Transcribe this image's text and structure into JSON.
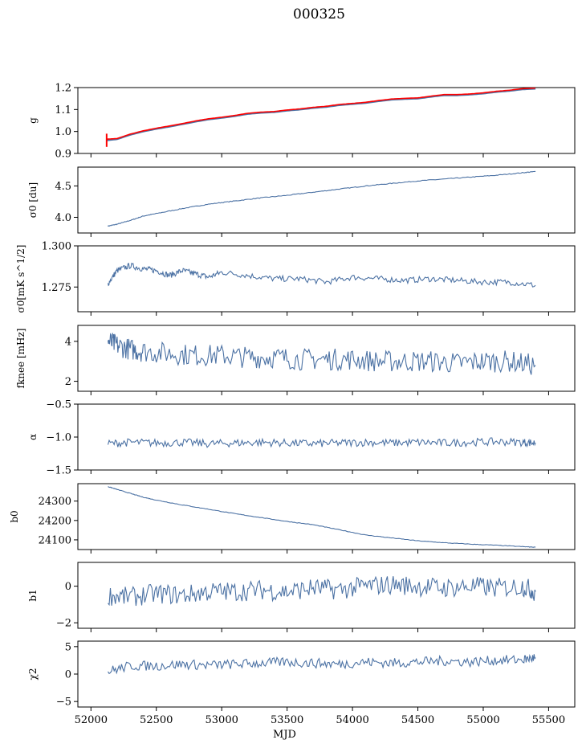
{
  "figure": {
    "title": "000325",
    "xlabel": "MJD"
  },
  "colors": {
    "series": "#4c72a4",
    "fit": "#ff0000",
    "axis": "#000000"
  },
  "chart_data": [
    {
      "type": "line",
      "ylabel": "g",
      "ylim": [
        0.9,
        1.2
      ],
      "yticks": [
        "0.9",
        "1.0",
        "1.1",
        "1.2"
      ],
      "x": [
        52120,
        52200,
        52300,
        52400,
        52500,
        52600,
        52700,
        52800,
        52900,
        53000,
        53100,
        53200,
        53300,
        53400,
        53500,
        53600,
        53700,
        53800,
        53900,
        54000,
        54100,
        54200,
        54300,
        54400,
        54500,
        54600,
        54700,
        54800,
        54900,
        55000,
        55100,
        55200,
        55300,
        55400
      ],
      "series": [
        {
          "values": [
            0.96,
            0.965,
            0.985,
            1.0,
            1.012,
            1.022,
            1.033,
            1.045,
            1.055,
            1.062,
            1.07,
            1.08,
            1.085,
            1.088,
            1.095,
            1.1,
            1.107,
            1.112,
            1.12,
            1.125,
            1.13,
            1.138,
            1.145,
            1.148,
            1.15,
            1.158,
            1.165,
            1.165,
            1.168,
            1.173,
            1.18,
            1.185,
            1.192,
            1.195
          ]
        },
        {
          "values": [
            0.965,
            0.968,
            0.988,
            1.003,
            1.015,
            1.025,
            1.036,
            1.048,
            1.058,
            1.065,
            1.073,
            1.083,
            1.088,
            1.091,
            1.098,
            1.103,
            1.11,
            1.115,
            1.123,
            1.128,
            1.133,
            1.141,
            1.148,
            1.151,
            1.153,
            1.161,
            1.168,
            1.168,
            1.171,
            1.176,
            1.183,
            1.188,
            1.195,
            1.198
          ]
        }
      ],
      "annotations": [
        "error bar at MJD 52120 from 0.93 to 0.99"
      ]
    },
    {
      "type": "line",
      "ylabel": "σ0 [du]",
      "ylim": [
        3.75,
        4.8
      ],
      "yticks": [
        "4.0",
        "4.5"
      ],
      "x": [
        52130,
        52200,
        52300,
        52400,
        52500,
        52700,
        52900,
        53100,
        53300,
        53500,
        53700,
        53900,
        54100,
        54300,
        54500,
        54700,
        54900,
        55100,
        55300,
        55400
      ],
      "series": [
        {
          "values": [
            3.86,
            3.89,
            3.95,
            4.02,
            4.06,
            4.14,
            4.21,
            4.26,
            4.31,
            4.35,
            4.4,
            4.45,
            4.5,
            4.54,
            4.58,
            4.61,
            4.64,
            4.67,
            4.71,
            4.73
          ]
        }
      ]
    },
    {
      "type": "line",
      "ylabel": "σ0[mK s^1/2]",
      "ylim": [
        1.26,
        1.3
      ],
      "yticks": [
        "1.275",
        "1.300"
      ],
      "x": [
        52130,
        52200,
        52300,
        52400,
        52500,
        52600,
        52700,
        52800,
        52900,
        53000,
        53200,
        53400,
        53600,
        53800,
        54000,
        54200,
        54400,
        54600,
        54800,
        55000,
        55200,
        55400
      ],
      "series": [
        {
          "values": [
            1.277,
            1.285,
            1.288,
            1.286,
            1.285,
            1.282,
            1.285,
            1.283,
            1.281,
            1.284,
            1.282,
            1.28,
            1.28,
            1.278,
            1.281,
            1.28,
            1.279,
            1.28,
            1.279,
            1.278,
            1.278,
            1.276
          ]
        }
      ]
    },
    {
      "type": "line",
      "ylabel": "fknee [mHz]",
      "ylim": [
        1.5,
        4.8
      ],
      "yticks": [
        "2",
        "4"
      ],
      "x": [
        52130,
        52200,
        52300,
        52400,
        52600,
        52800,
        53000,
        53200,
        53400,
        53600,
        53800,
        54000,
        54200,
        54400,
        54600,
        54800,
        55000,
        55200,
        55400
      ],
      "series": [
        {
          "values": [
            4.0,
            3.8,
            3.6,
            3.5,
            3.4,
            3.3,
            3.3,
            3.2,
            3.2,
            3.1,
            3.1,
            3.1,
            3.0,
            3.0,
            3.0,
            2.9,
            3.0,
            3.0,
            2.8
          ]
        }
      ]
    },
    {
      "type": "line",
      "ylabel": "α",
      "ylim": [
        -1.5,
        -0.5
      ],
      "yticks": [
        "−1.5",
        "−1.0",
        "−0.5"
      ],
      "x": [
        52130,
        52300,
        52500,
        52700,
        52900,
        53100,
        53300,
        53500,
        53700,
        53900,
        54100,
        54300,
        54500,
        54700,
        54900,
        55100,
        55300,
        55400
      ],
      "series": [
        {
          "values": [
            -1.1,
            -1.08,
            -1.09,
            -1.08,
            -1.1,
            -1.09,
            -1.08,
            -1.09,
            -1.1,
            -1.09,
            -1.08,
            -1.09,
            -1.08,
            -1.09,
            -1.08,
            -1.07,
            -1.08,
            -1.09
          ]
        }
      ]
    },
    {
      "type": "line",
      "ylabel": "b0",
      "ylim": [
        24050,
        24390
      ],
      "yticks": [
        "24100",
        "24200",
        "24300"
      ],
      "x": [
        52130,
        52200,
        52300,
        52400,
        52500,
        52700,
        52900,
        53100,
        53300,
        53500,
        53700,
        53900,
        54100,
        54300,
        54500,
        54700,
        54900,
        55100,
        55300,
        55400
      ],
      "series": [
        {
          "values": [
            24375,
            24360,
            24340,
            24320,
            24305,
            24280,
            24258,
            24235,
            24215,
            24195,
            24178,
            24152,
            24125,
            24110,
            24095,
            24085,
            24078,
            24072,
            24065,
            24062
          ]
        }
      ]
    },
    {
      "type": "line",
      "ylabel": "b1",
      "ylim": [
        -2.3,
        1.3
      ],
      "yticks": [
        "−2",
        "0"
      ],
      "x": [
        52130,
        52300,
        52500,
        52700,
        52900,
        53100,
        53300,
        53500,
        53700,
        53900,
        54100,
        54300,
        54500,
        54700,
        54900,
        55100,
        55300,
        55400
      ],
      "series": [
        {
          "values": [
            -0.5,
            -0.6,
            -0.4,
            -0.5,
            -0.3,
            -0.3,
            -0.2,
            -0.3,
            -0.1,
            -0.2,
            0.0,
            0.1,
            0.0,
            -0.1,
            0.0,
            -0.1,
            0.0,
            -0.3
          ]
        }
      ]
    },
    {
      "type": "line",
      "ylabel": "χ2",
      "ylim": [
        -6,
        6
      ],
      "yticks": [
        "−5",
        "0",
        "5"
      ],
      "xticks": [
        "52000",
        "52500",
        "53000",
        "53500",
        "54000",
        "54500",
        "55000",
        "55500"
      ],
      "x": [
        52130,
        52300,
        52500,
        52700,
        52900,
        53100,
        53300,
        53500,
        53700,
        53900,
        54100,
        54300,
        54500,
        54700,
        54900,
        55100,
        55300,
        55400
      ],
      "series": [
        {
          "values": [
            0.5,
            1.5,
            1.5,
            1.8,
            1.6,
            1.8,
            2.0,
            2.2,
            2.0,
            1.8,
            2.2,
            2.0,
            2.2,
            2.4,
            2.2,
            2.5,
            2.6,
            3.0
          ]
        }
      ]
    }
  ]
}
